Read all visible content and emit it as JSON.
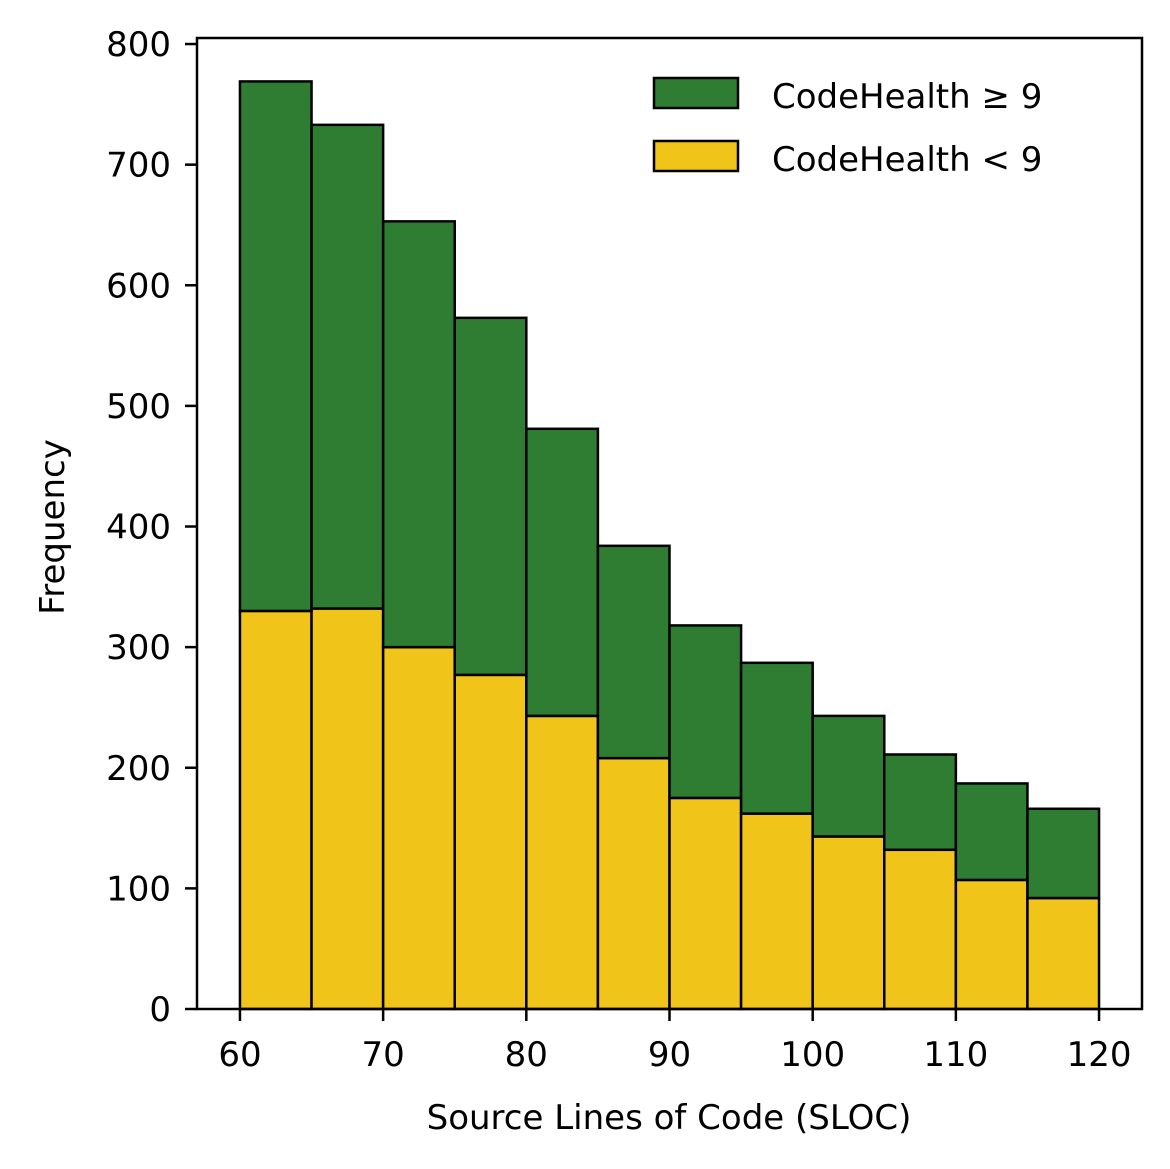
{
  "chart_data": {
    "type": "bar",
    "stacked": true,
    "histogram": true,
    "title": "",
    "xlabel": "Source Lines of Code (SLOC)",
    "ylabel": "Frequency",
    "xlim": [
      57,
      123
    ],
    "ylim": [
      0,
      805
    ],
    "xticks": [
      60,
      70,
      80,
      90,
      100,
      110,
      120
    ],
    "yticks": [
      0,
      100,
      200,
      300,
      400,
      500,
      600,
      700,
      800
    ],
    "bin_edges": [
      60,
      65,
      70,
      75,
      80,
      85,
      90,
      95,
      100,
      105,
      110,
      115,
      120
    ],
    "series": [
      {
        "name": "CodeHealth < 9",
        "color": "#f0c419",
        "values": [
          330,
          332,
          300,
          277,
          243,
          208,
          175,
          162,
          143,
          132,
          107,
          92
        ]
      },
      {
        "name": "CodeHealth ≥ 9",
        "color": "#2f7d32",
        "values": [
          439,
          401,
          353,
          296,
          238,
          176,
          143,
          125,
          100,
          79,
          80,
          74
        ]
      }
    ],
    "legend": {
      "position": "top-right",
      "entries": [
        "CodeHealth ≥ 9",
        "CodeHealth < 9"
      ]
    }
  }
}
